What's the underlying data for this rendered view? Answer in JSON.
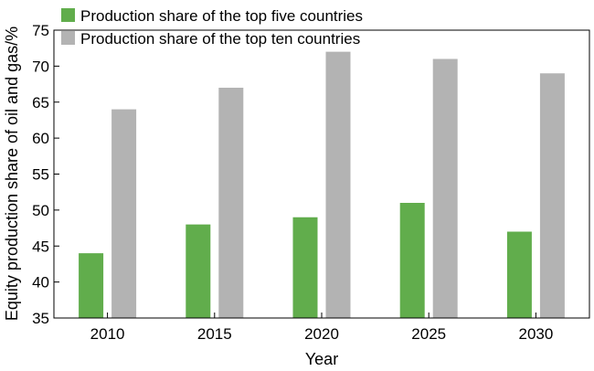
{
  "chart_data": {
    "type": "bar",
    "title": "",
    "xlabel": "Year",
    "ylabel": "Equity production share of oil and gas/%",
    "categories": [
      "2010",
      "2015",
      "2020",
      "2025",
      "2030"
    ],
    "series": [
      {
        "name": "Production share of the top five countries",
        "color": "#61ad4c",
        "values": [
          44,
          48,
          49,
          51,
          47
        ]
      },
      {
        "name": "Production share of the top ten countries",
        "color": "#b3b3b3",
        "values": [
          64,
          67,
          72,
          71,
          69
        ]
      }
    ],
    "ylim": [
      35,
      75
    ],
    "yticks": [
      35,
      40,
      45,
      50,
      55,
      60,
      65,
      70,
      75
    ],
    "grid": false,
    "legend_position": "top-left"
  }
}
